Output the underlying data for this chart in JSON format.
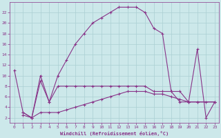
{
  "xlabel": "Windchill (Refroidissement éolien,°C)",
  "background_color": "#cce8ea",
  "grid_color": "#aacfd2",
  "line_color": "#883388",
  "x_ticks": [
    0,
    1,
    2,
    3,
    4,
    5,
    6,
    7,
    8,
    9,
    10,
    11,
    12,
    13,
    14,
    15,
    16,
    17,
    18,
    19,
    20,
    21,
    22,
    23
  ],
  "y_ticks": [
    2,
    4,
    6,
    8,
    10,
    12,
    14,
    16,
    18,
    20,
    22
  ],
  "xlim": [
    -0.5,
    23.5
  ],
  "ylim": [
    1.0,
    24.0
  ],
  "curve1_x": [
    0,
    1,
    2,
    3,
    4,
    5,
    6,
    7,
    8,
    9,
    10,
    11,
    12,
    13,
    14,
    15,
    16,
    17,
    18,
    19,
    20,
    21,
    22,
    23
  ],
  "curve1_y": [
    11,
    3,
    2,
    10,
    5,
    10,
    13,
    16,
    18,
    20,
    21,
    22,
    23,
    23,
    23,
    22,
    19,
    18,
    7,
    7,
    5,
    15,
    2,
    5
  ],
  "curve2_x": [
    1,
    2,
    3,
    4,
    5,
    6,
    7,
    8,
    9,
    10,
    11,
    12,
    13,
    14,
    15,
    16,
    17,
    18,
    19,
    20,
    21,
    23
  ],
  "curve2_y": [
    3,
    2,
    9,
    5,
    8,
    8,
    8,
    8,
    8,
    8,
    8,
    8,
    8,
    8,
    8,
    7,
    7,
    7,
    5,
    5,
    5,
    5
  ],
  "curve3_x": [
    1,
    2,
    3,
    4,
    5,
    6,
    7,
    8,
    9,
    10,
    11,
    12,
    13,
    14,
    15,
    16,
    17,
    18,
    19,
    20,
    21,
    22,
    23
  ],
  "curve3_y": [
    2.5,
    2,
    3,
    3,
    3,
    3.5,
    4,
    4.5,
    5,
    5.5,
    6,
    6.5,
    7,
    7,
    7,
    6.5,
    6.5,
    6,
    5.5,
    5,
    5,
    5,
    5
  ]
}
